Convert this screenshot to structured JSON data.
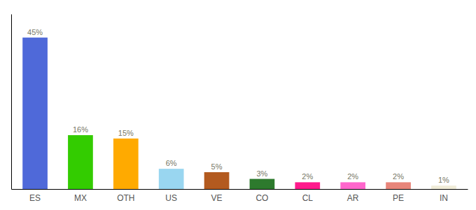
{
  "chart_data": {
    "type": "bar",
    "categories": [
      "ES",
      "MX",
      "OTH",
      "US",
      "VE",
      "CO",
      "CL",
      "AR",
      "PE",
      "IN"
    ],
    "values": [
      45,
      16,
      15,
      6,
      5,
      3,
      2,
      2,
      2,
      1
    ],
    "value_labels": [
      "45%",
      "16%",
      "15%",
      "6%",
      "5%",
      "3%",
      "2%",
      "2%",
      "2%",
      "1%"
    ],
    "colors": [
      "#4f69d9",
      "#33cc00",
      "#ffaa00",
      "#99d6f0",
      "#b35a1f",
      "#2d7a2d",
      "#ff1a8c",
      "#ff66cc",
      "#e8857a",
      "#f0ecd8"
    ],
    "ylim": [
      0,
      52
    ],
    "data_labels": true,
    "tick_labels": "x",
    "grid": false
  }
}
